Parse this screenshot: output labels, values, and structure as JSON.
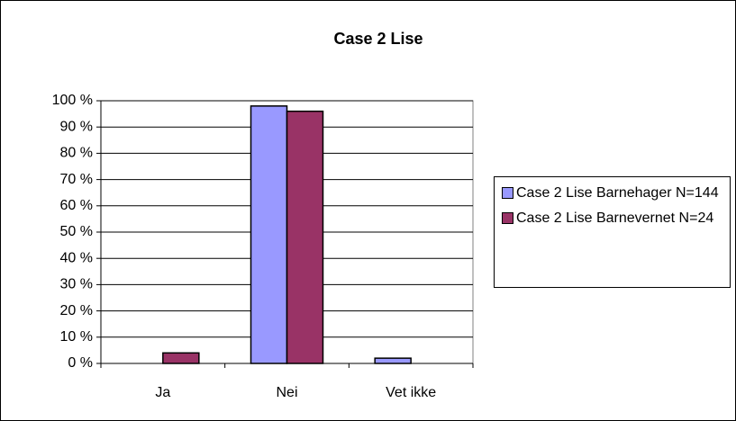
{
  "chart_data": {
    "type": "bar",
    "title": "Case 2 Lise",
    "categories": [
      "Ja",
      "Nei",
      "Vet ikke"
    ],
    "series": [
      {
        "name": "Case 2 Lise Barnehager N=144",
        "color": "#9999ff",
        "values": [
          0,
          98,
          2
        ]
      },
      {
        "name": "Case 2 Lise Barnevernet N=24",
        "color": "#993366",
        "values": [
          4,
          96,
          0
        ]
      }
    ],
    "ylim": [
      0,
      100
    ],
    "yticks": [
      {
        "value": 0,
        "label": "0 %"
      },
      {
        "value": 10,
        "label": "10 %"
      },
      {
        "value": 20,
        "label": "20 %"
      },
      {
        "value": 30,
        "label": "30 %"
      },
      {
        "value": 40,
        "label": "40 %"
      },
      {
        "value": 50,
        "label": "50 %"
      },
      {
        "value": 60,
        "label": "60 %"
      },
      {
        "value": 70,
        "label": "70 %"
      },
      {
        "value": 80,
        "label": "80 %"
      },
      {
        "value": 90,
        "label": "90 %"
      },
      {
        "value": 100,
        "label": "100 %"
      }
    ],
    "grid": true,
    "legend": "right"
  }
}
